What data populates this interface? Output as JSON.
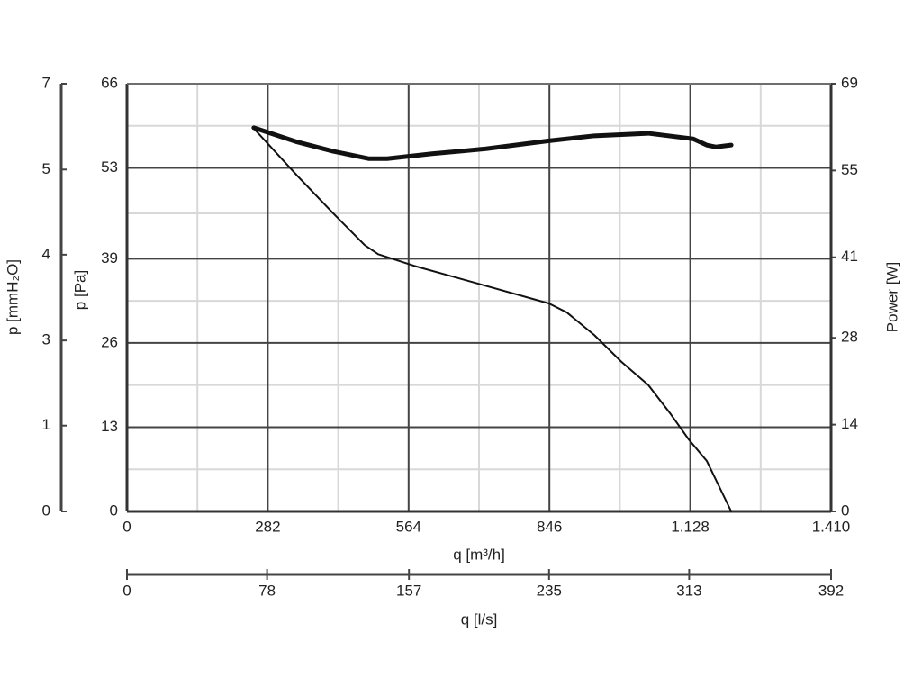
{
  "chart_data": {
    "type": "line",
    "x_label": "q [m³/h]",
    "x2_label": "q [l/s]",
    "y_label": "p [Pa]",
    "y3_label": "p [mmH₂O]",
    "y2_label": "Power [W]",
    "xlim": [
      0,
      1410
    ],
    "xticks": [
      0,
      282,
      564,
      846,
      {
        "value": 1128,
        "label": "1.128"
      },
      {
        "value": 1410,
        "label": "1.410"
      }
    ],
    "x2lim": [
      0,
      392
    ],
    "x2ticks": [
      0,
      78,
      157,
      235,
      313,
      392
    ],
    "ylim": [
      0,
      66
    ],
    "yticks": [
      0,
      13,
      26,
      39,
      53,
      66
    ],
    "y3lim": [
      0,
      6.73
    ],
    "y3ticks": [
      0,
      {
        "value": 1.35,
        "label": "1"
      },
      {
        "value": 2.69,
        "label": "3"
      },
      {
        "value": 4.04,
        "label": "4"
      },
      {
        "value": 5.38,
        "label": "5"
      },
      {
        "value": 6.73,
        "label": "7"
      }
    ],
    "y2lim": [
      0,
      69
    ],
    "y2ticks": [
      0,
      14,
      28,
      41,
      55,
      69
    ],
    "grid": true,
    "series": [
      {
        "color": "#111111",
        "width": 2,
        "x": [
          254,
          341,
          413,
          476,
          503,
          575,
          701,
          845,
          881,
          936,
          990,
          1044,
          1089,
          1125,
          1161,
          1210
        ],
        "values": [
          59.1,
          51.8,
          46.0,
          41.1,
          39.7,
          37.9,
          35.2,
          32.1,
          30.7,
          27.2,
          23.1,
          19.5,
          15.0,
          11.1,
          7.8,
          0
        ]
      },
      {
        "color": "#111111",
        "width": 5,
        "axis": "y2",
        "x": [
          254,
          341,
          413,
          485,
          521,
          611,
          719,
          845,
          936,
          1044,
          1134,
          1161,
          1179,
          1210
        ],
        "values": [
          61.9,
          59.6,
          58.1,
          56.9,
          56.9,
          57.7,
          58.5,
          59.8,
          60.6,
          61.0,
          60.1,
          59.1,
          58.8,
          59.1
        ]
      }
    ]
  }
}
